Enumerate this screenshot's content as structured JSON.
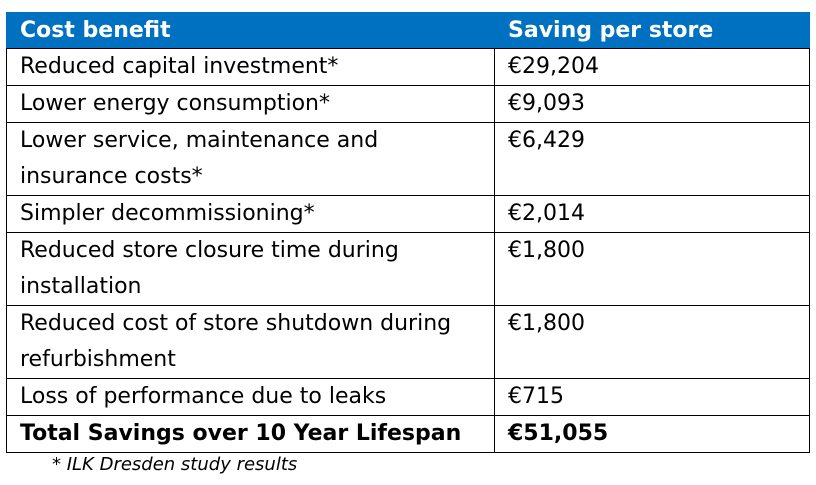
{
  "table": {
    "headers": [
      "Cost benefit",
      "Saving per store"
    ],
    "rows": [
      {
        "benefit": "Reduced capital investment*",
        "saving": "€29,204"
      },
      {
        "benefit": "Lower energy consumption*",
        "saving": "€9,093"
      },
      {
        "benefit": "Lower service, maintenance and insurance costs*",
        "saving": "€6,429"
      },
      {
        "benefit": "Simpler decommissioning*",
        "saving": "€2,014"
      },
      {
        "benefit": "Reduced store closure time during installation",
        "saving": "€1,800"
      },
      {
        "benefit": "Reduced cost of store shutdown during refurbishment",
        "saving": "€1,800"
      },
      {
        "benefit": "Loss of performance due to leaks",
        "saving": "€715"
      }
    ],
    "total": {
      "benefit": "Total Savings over 10 Year Lifespan",
      "saving": "€51,055"
    }
  },
  "footnote": "* ILK Dresden study results",
  "colors": {
    "header_bg": "#0070c0",
    "header_text": "#ffffff"
  }
}
